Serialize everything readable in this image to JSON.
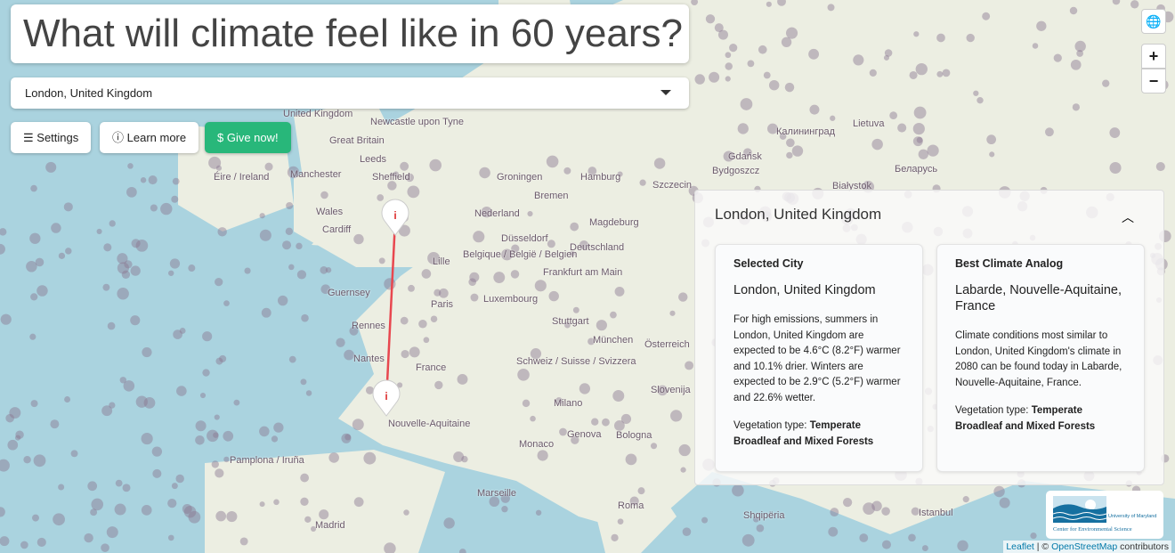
{
  "header": {
    "title": "What will climate feel like in 60 years?"
  },
  "city_select": {
    "value": "London, United Kingdom"
  },
  "buttons": {
    "settings": "Settings",
    "learn_more": "Learn more",
    "give_now": "Give now!"
  },
  "map_controls": {
    "zoom_in": "+",
    "zoom_out": "−"
  },
  "map_labels": [
    "United Kingdom",
    "Newcastle upon Tyne",
    "Great Britain",
    "Leeds",
    "Manchester",
    "Sheffield",
    "Éire / Ireland",
    "Cardiff",
    "Wales",
    "Nederland",
    "Groningen",
    "Bremen",
    "Hamburg",
    "Szczecin",
    "Gdańsk",
    "Bydgoszcz",
    "Białystok",
    "Magdeburg",
    "Düsseldorf",
    "Deutschland",
    "Lille",
    "Belgique / België / Belgien",
    "Frankfurt am Main",
    "Luxembourg",
    "Paris",
    "Rennes",
    "Nantes",
    "France",
    "Guernsey",
    "Stuttgart",
    "München",
    "Österreich",
    "Schweiz / Suisse / Svizzera",
    "Milano",
    "Genova",
    "Bologna",
    "Monaco",
    "Marseille",
    "Pamplona / Iruña",
    "Madrid",
    "Roma",
    "Shqipëria",
    "Istanbul",
    "Lietuva",
    "Беларусь",
    "Калининград",
    "Slovenija",
    "Nouvelle-Aquitaine"
  ],
  "panel": {
    "title": "London, United Kingdom",
    "selected": {
      "heading": "Selected City",
      "city": "London, United Kingdom",
      "description": "For high emissions, summers in London, United Kingdom are expected to be 4.6°C (8.2°F) warmer and 10.1% drier. Winters are expected to be 2.9°C (5.2°F) warmer and 22.6% wetter.",
      "veg_label": "Vegetation type:",
      "veg_value": "Temperate Broadleaf and Mixed Forests"
    },
    "analog": {
      "heading": "Best Climate Analog",
      "city": "Labarde, Nouvelle-Aquitaine, France",
      "description": "Climate conditions most similar to London, United Kingdom's climate in 2080 can be found today in Labarde, Nouvelle-Aquitaine, France.",
      "veg_label": "Vegetation type:",
      "veg_value": "Temperate Broadleaf and Mixed Forests"
    }
  },
  "logo": {
    "line1": "University of Maryland",
    "line2": "Center for Environmental Science"
  },
  "attribution": {
    "leaflet": "Leaflet",
    "sep": " | © ",
    "osm": "OpenStreetMap",
    "rest": " contributors"
  },
  "colors": {
    "give_button": "#28b77a",
    "route_line": "#e8474f",
    "city_dots": "#8a7590",
    "land": "#eef0e4",
    "sea": "#aad3df"
  }
}
